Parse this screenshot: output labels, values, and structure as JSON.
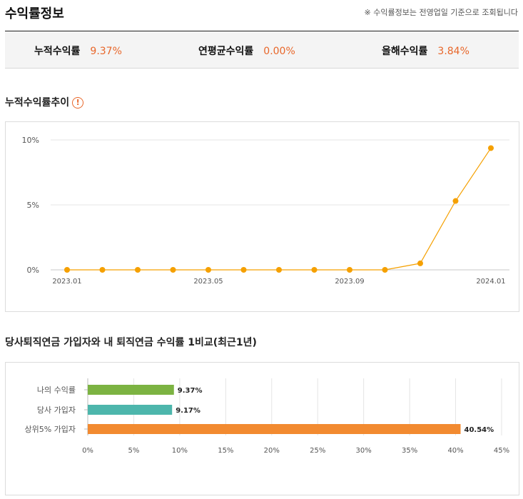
{
  "header": {
    "title": "수익률정보",
    "note": "※ 수익률정보는 전영업일 기준으로 조회됩니다"
  },
  "summary": [
    {
      "label": "누적수익률",
      "value": "9.37%"
    },
    {
      "label": "연평균수익률",
      "value": "0.00%"
    },
    {
      "label": "올해수익률",
      "value": "3.84%"
    }
  ],
  "trend": {
    "title": "누적수익률추이",
    "info_icon": "exclamation-circle-icon"
  },
  "compare": {
    "title": "당사퇴직연금 가입자와 내 퇴직연금 수익률 1비교(최근1년)"
  },
  "colors": {
    "accent": "#e8672a",
    "line": "#f5a000",
    "green": "#7cb342",
    "teal": "#4db6ac",
    "orange": "#f28a30"
  },
  "chart_data": [
    {
      "type": "line",
      "x": [
        "2023.01",
        "2023.02",
        "2023.03",
        "2023.04",
        "2023.05",
        "2023.06",
        "2023.07",
        "2023.08",
        "2023.09",
        "2023.10",
        "2023.11",
        "2023.12",
        "2024.01"
      ],
      "xticklabels": [
        "2023.01",
        "2023.05",
        "2023.09",
        "2024.01"
      ],
      "series": [
        {
          "values": [
            0,
            0,
            0,
            0,
            0,
            0,
            0,
            0,
            0,
            0,
            0.5,
            5.3,
            9.37
          ]
        }
      ],
      "yticklabels": [
        "0%",
        "5%",
        "10%"
      ],
      "ylim": [
        0,
        10
      ],
      "grid": true
    },
    {
      "type": "bar",
      "orientation": "horizontal",
      "categories": [
        "나의 수익률",
        "당사 가입자",
        "상위5% 가입자"
      ],
      "values": [
        9.37,
        9.17,
        40.54
      ],
      "value_labels": [
        "9.37%",
        "9.17%",
        "40.54%"
      ],
      "xticklabels": [
        "0%",
        "5%",
        "10%",
        "15%",
        "20%",
        "25%",
        "30%",
        "35%",
        "40%",
        "45%"
      ],
      "xlim": [
        0,
        45
      ],
      "grid": true
    }
  ]
}
